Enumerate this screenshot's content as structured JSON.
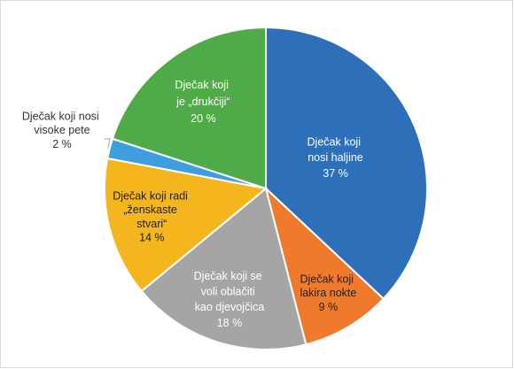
{
  "chart_data": {
    "type": "pie",
    "categories": [
      "Dječak koji nosi haljine",
      "Dječak koji lakira nokte",
      "Dječak koji se voli oblačiti kao djevojčica",
      "Dječak koji radi „ženskaste stvari“",
      "Dječak koji nosi visoke pete",
      "Dječak koji je „drukčiji“"
    ],
    "values": [
      37,
      9,
      18,
      14,
      2,
      20
    ],
    "value_labels": [
      "37 %",
      "9 %",
      "18 %",
      "14 %",
      "2 %",
      "20 %"
    ],
    "colors": [
      "#2e6fba",
      "#ef7a2c",
      "#a5a5a5",
      "#f4b51d",
      "#3f9ede",
      "#4fab48"
    ]
  }
}
